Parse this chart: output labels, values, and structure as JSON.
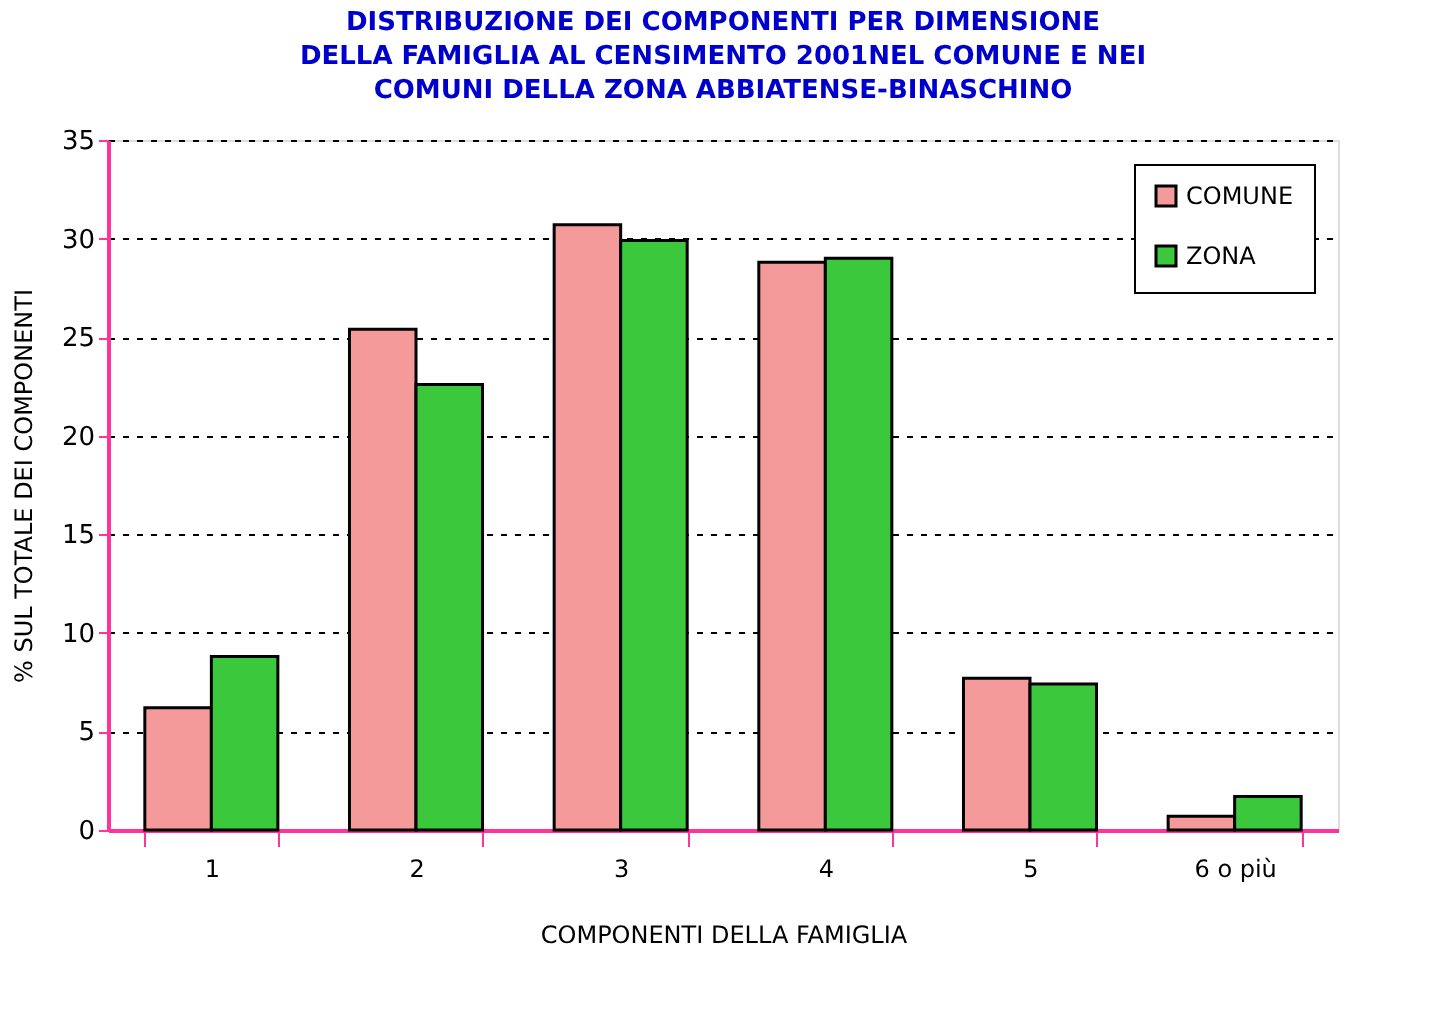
{
  "chart_data": {
    "type": "bar",
    "title": [
      "DISTRIBUZIONE   DEI   COMPONENTI   PER   DIMENSIONE",
      "DELLA  FAMIGLIA  AL  CENSIMENTO  2001NEL  COMUNE  E  NEI",
      "COMUNI   DELLA   ZONA   ABBIATENSE-BINASCHINO"
    ],
    "xlabel": "COMPONENTI DELLA FAMIGLIA",
    "ylabel": "% SUL TOTALE DEI COMPONENTI",
    "categories": [
      "1",
      "2",
      "3",
      "4",
      "5",
      "6 o più"
    ],
    "series": [
      {
        "name": "COMUNE",
        "color": "#f59a9a",
        "values": [
          6.2,
          25.4,
          30.7,
          28.8,
          7.7,
          0.7
        ]
      },
      {
        "name": "ZONA",
        "color": "#3cc83c",
        "values": [
          8.8,
          22.6,
          29.9,
          29.0,
          7.4,
          1.7
        ]
      }
    ],
    "ylim": [
      0,
      35
    ],
    "yticks": [
      0,
      5,
      10,
      15,
      20,
      25,
      30,
      35
    ],
    "grid": "y",
    "legend": "top right"
  }
}
